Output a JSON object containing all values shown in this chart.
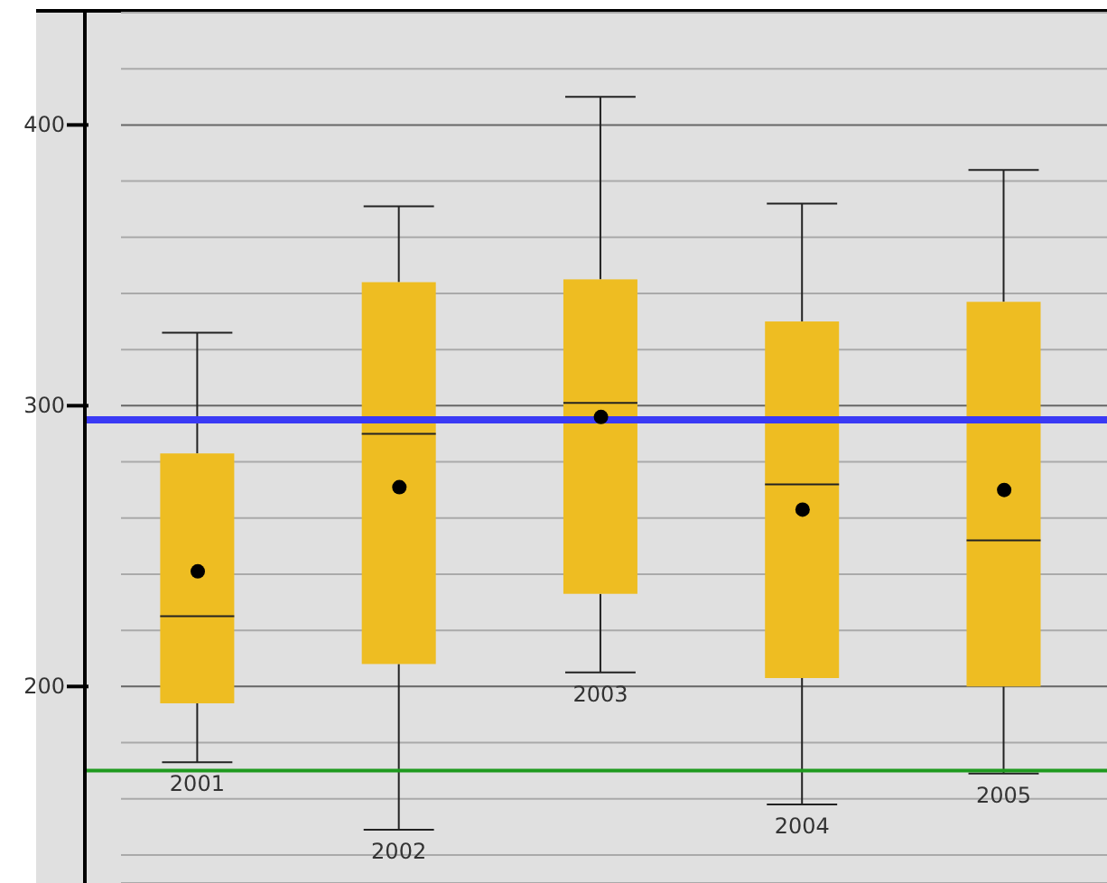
{
  "chart_data": {
    "type": "box",
    "categories": [
      "2001",
      "2002",
      "2003",
      "2004",
      "2005"
    ],
    "color": "#eebd22",
    "boxes": [
      {
        "low": 173,
        "q1": 194,
        "median": 225,
        "q3": 283,
        "high": 326,
        "mean": 241
      },
      {
        "low": 149,
        "q1": 208,
        "median": 290,
        "q3": 344,
        "high": 371,
        "mean": 271
      },
      {
        "low": 205,
        "q1": 233,
        "median": 301,
        "q3": 345,
        "high": 410,
        "mean": 296
      },
      {
        "low": 158,
        "q1": 203,
        "median": 272,
        "q3": 330,
        "high": 372,
        "mean": 263
      },
      {
        "low": 169,
        "q1": 200,
        "median": 252,
        "q3": 337,
        "high": 384,
        "mean": 270
      }
    ],
    "ylim": [
      130,
      440
    ],
    "yticks": [
      {
        "value": 140,
        "label": null
      },
      {
        "value": 160,
        "label": null
      },
      {
        "value": 180,
        "label": null
      },
      200,
      {
        "value": 220,
        "label": null
      },
      {
        "value": 240,
        "label": null
      },
      {
        "value": 260,
        "label": null
      },
      {
        "value": 280,
        "label": null
      },
      300,
      {
        "value": 320,
        "label": null
      },
      {
        "value": 340,
        "label": null
      },
      {
        "value": 360,
        "label": null
      },
      {
        "value": 380,
        "label": null
      },
      400,
      {
        "value": 420,
        "label": null
      }
    ],
    "grid": "y",
    "ref_lines": [
      {
        "axis": "y",
        "value": 295,
        "label": null,
        "color": "#3a3af5"
      },
      {
        "axis": "y",
        "value": 170,
        "label": null,
        "color": "#1f9a1f"
      }
    ]
  }
}
